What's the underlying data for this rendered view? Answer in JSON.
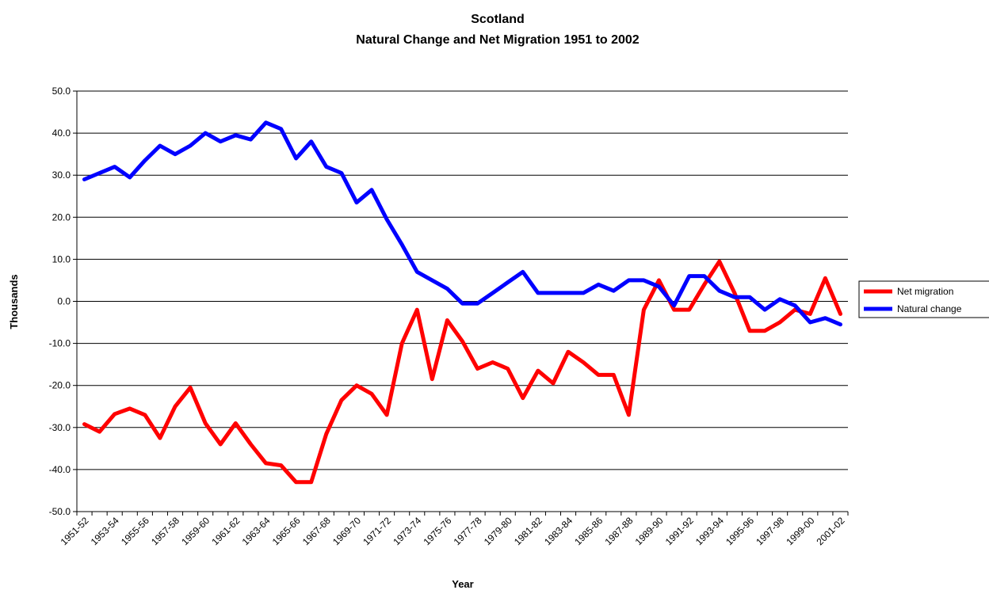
{
  "chart_data": {
    "type": "line",
    "title": "Scotland",
    "subtitle": "Natural Change and Net Migration 1951 to 2002",
    "xlabel": "Year",
    "ylabel": "Thousands",
    "ylim": [
      -50,
      50
    ],
    "yticks": [
      50,
      40,
      30,
      20,
      10,
      0,
      -10,
      -20,
      -30,
      -40,
      -50
    ],
    "ytick_labels": [
      "50.0",
      "40.0",
      "30.0",
      "20.0",
      "10.0",
      "0.0",
      "-10.0",
      "-20.0",
      "-30.0",
      "-40.0",
      "-50.0"
    ],
    "grid": true,
    "legend_position": "right",
    "categories": [
      "1951-52",
      "1952-53",
      "1953-54",
      "1954-55",
      "1955-56",
      "1956-57",
      "1957-58",
      "1958-59",
      "1959-60",
      "1960-61",
      "1961-62",
      "1962-63",
      "1963-64",
      "1964-65",
      "1965-66",
      "1966-67",
      "1967-68",
      "1968-69",
      "1969-70",
      "1970-71",
      "1971-72",
      "1972-73",
      "1973-74",
      "1974-75",
      "1975-76",
      "1976-77",
      "1977-78",
      "1978-79",
      "1979-80",
      "1980-81",
      "1981-82",
      "1982-83",
      "1983-84",
      "1984-85",
      "1985-86",
      "1986-87",
      "1987-88",
      "1988-89",
      "1989-90",
      "1990-91",
      "1991-92",
      "1992-93",
      "1993-94",
      "1994-95",
      "1995-96",
      "1996-97",
      "1997-98",
      "1998-99",
      "1999-00",
      "2000-01",
      "2001-02"
    ],
    "tick_labels_shown": [
      "1951-52",
      "1953-54",
      "1955-56",
      "1957-58",
      "1959-60",
      "1961-62",
      "1963-64",
      "1965-66",
      "1967-68",
      "1969-70",
      "1971-72",
      "1973-74",
      "1975-76",
      "1977-78",
      "1979-80",
      "1981-82",
      "1983-84",
      "1985-86",
      "1987-88",
      "1989-90",
      "1991-92",
      "1993-94",
      "1995-96",
      "1997-98",
      "1999-00",
      "2001-02"
    ],
    "series": [
      {
        "name": "Net migration",
        "color": "#ff0000",
        "values": [
          -29.2,
          -31.0,
          -26.8,
          -25.5,
          -27.0,
          -32.5,
          -25.0,
          -20.5,
          -29.0,
          -34.0,
          -29.0,
          -34.0,
          -38.5,
          -39.0,
          -43.0,
          -43.0,
          -31.5,
          -23.5,
          -20.0,
          -22.0,
          -27.0,
          -10.0,
          -2.0,
          -18.5,
          -4.5,
          -9.5,
          -16.0,
          -14.5,
          -16.0,
          -23.0,
          -16.5,
          -19.5,
          -12.0,
          -14.5,
          -17.5,
          -17.5,
          -27.0,
          -2.0,
          5.0,
          -2.0,
          -2.0,
          4.0,
          9.5,
          2.0,
          -7.0,
          -7.0,
          -5.0,
          -2.0,
          -3.0,
          5.5,
          -3.0
        ]
      },
      {
        "name": "Natural change",
        "color": "#0000ff",
        "values": [
          29.0,
          30.5,
          32.0,
          29.5,
          33.5,
          37.0,
          35.0,
          37.0,
          40.0,
          38.0,
          39.5,
          38.5,
          42.5,
          41.0,
          34.0,
          38.0,
          32.0,
          30.5,
          23.5,
          26.5,
          19.5,
          13.5,
          7.0,
          5.0,
          3.0,
          -0.5,
          -0.5,
          2.0,
          4.5,
          7.0,
          2.0,
          2.0,
          2.0,
          2.0,
          4.0,
          2.5,
          5.0,
          5.0,
          3.5,
          -1.0,
          6.0,
          6.0,
          2.5,
          1.0,
          1.0,
          -2.0,
          0.5,
          -1.0,
          -5.0,
          -4.0,
          -5.5
        ]
      }
    ]
  }
}
